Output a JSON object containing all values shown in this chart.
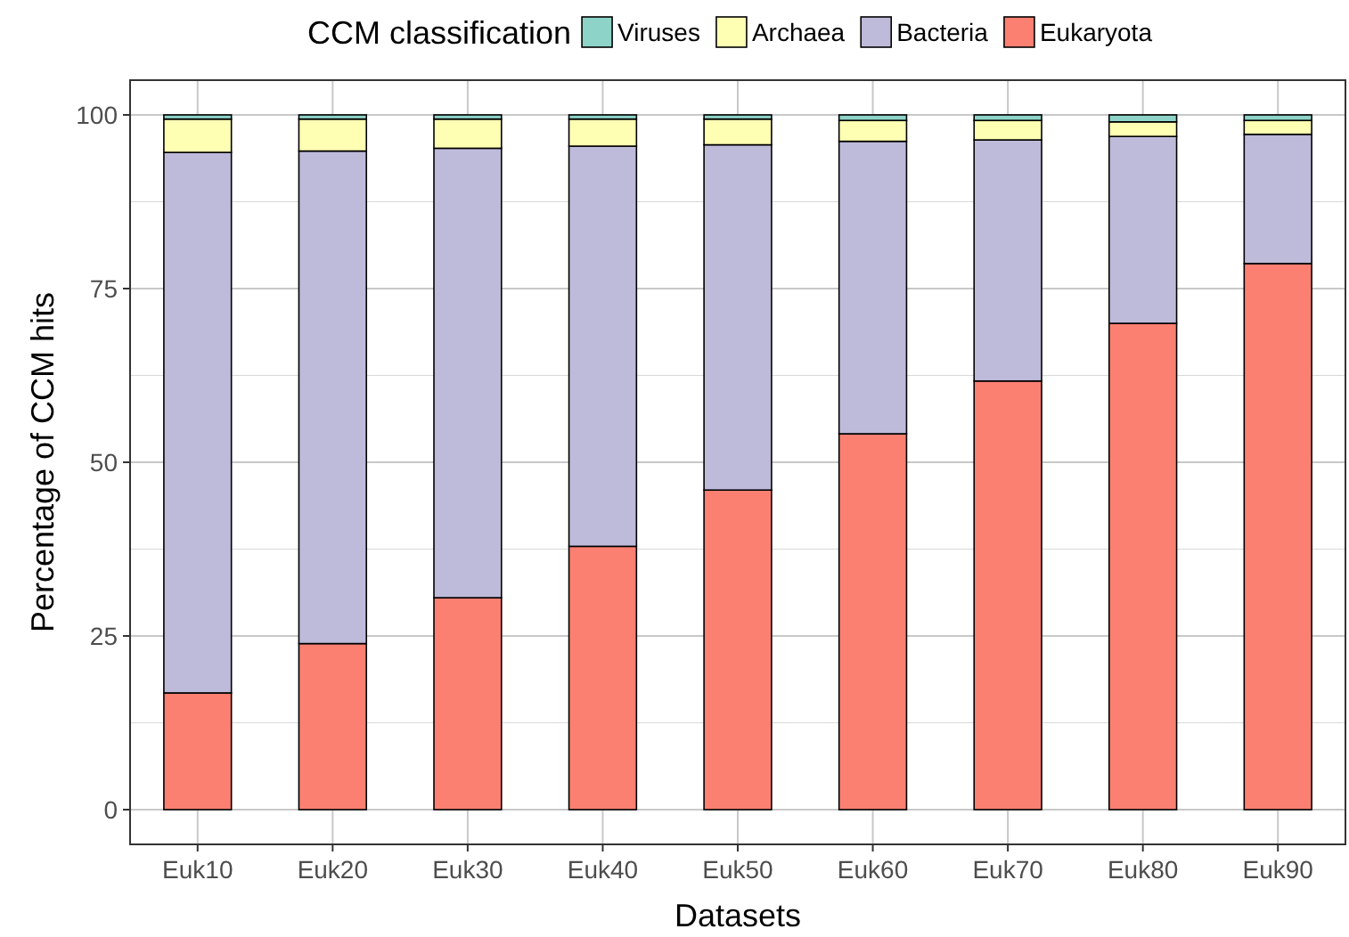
{
  "chart_data": {
    "type": "bar",
    "stacked": true,
    "xlabel": "Datasets",
    "ylabel": "Percentage of CCM hits",
    "legend_title": "CCM classification",
    "legend": "top",
    "grid": true,
    "categories": [
      "Euk10",
      "Euk20",
      "Euk30",
      "Euk40",
      "Euk50",
      "Euk60",
      "Euk70",
      "Euk80",
      "Euk90"
    ],
    "ylim": [
      -5,
      105
    ],
    "yticks": [
      0,
      25,
      50,
      75,
      100
    ],
    "series": [
      {
        "name": "Eukaryota",
        "color": "#fb8072",
        "values": [
          16.8,
          23.9,
          30.5,
          37.9,
          46.0,
          54.1,
          61.7,
          70.0,
          78.6
        ]
      },
      {
        "name": "Bacteria",
        "color": "#bebada",
        "values": [
          77.8,
          70.9,
          64.7,
          57.6,
          49.7,
          42.1,
          34.7,
          26.9,
          18.6
        ]
      },
      {
        "name": "Archaea",
        "color": "#ffffb3",
        "values": [
          4.8,
          4.6,
          4.2,
          3.9,
          3.7,
          3.0,
          2.8,
          2.1,
          2.0
        ]
      },
      {
        "name": "Viruses",
        "color": "#8dd3c7",
        "values": [
          0.6,
          0.6,
          0.6,
          0.6,
          0.6,
          0.8,
          0.8,
          1.0,
          0.8
        ]
      }
    ]
  }
}
